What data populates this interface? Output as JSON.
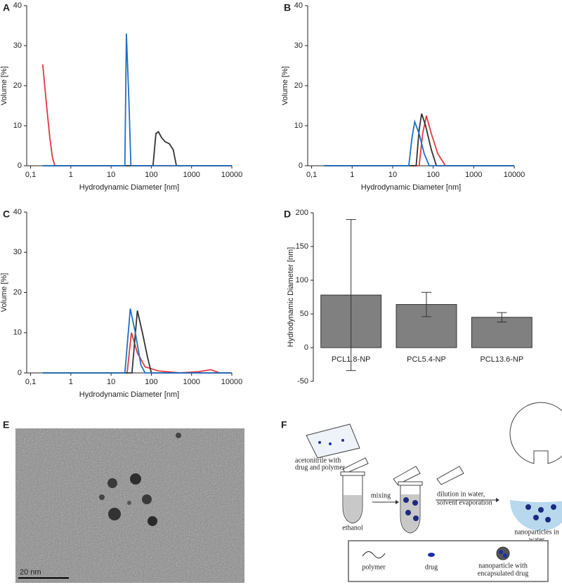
{
  "chart_data": [
    {
      "type": "line",
      "panel_label": "A",
      "xlabel": "Hydrodynamic Diameter [nm]",
      "ylabel": "Volume [%]",
      "xscale": "log",
      "xlim": [
        0.08,
        10000
      ],
      "ylim": [
        0,
        40
      ],
      "xticks": [
        {
          "value": 0.1,
          "label": "0,1"
        },
        1,
        10,
        100,
        1000,
        10000
      ],
      "yticks": [
        0,
        10,
        20,
        30,
        40
      ],
      "series": [
        {
          "color": "#e0393e",
          "x": [
            0.2,
            0.25,
            0.3,
            0.35,
            0.4,
            10000
          ],
          "values": [
            25.3,
            15,
            7,
            2,
            0,
            0
          ]
        },
        {
          "color": "#333333",
          "x": [
            0.2,
            110,
            130,
            150,
            180,
            220,
            280,
            350,
            420,
            10000
          ],
          "values": [
            0,
            0,
            8,
            8.5,
            7,
            6,
            5.5,
            4,
            0,
            0
          ]
        },
        {
          "color": "#1f6fc5",
          "x": [
            0.2,
            22,
            24,
            28,
            31,
            10000
          ],
          "values": [
            0,
            0,
            33,
            15,
            0,
            0
          ]
        }
      ]
    },
    {
      "type": "line",
      "panel_label": "B",
      "xlabel": "Hydrodynamic Diameter [nm]",
      "ylabel": "Volume [%]",
      "xscale": "log",
      "xlim": [
        0.08,
        10000
      ],
      "ylim": [
        0,
        40
      ],
      "xticks": [
        {
          "value": 0.1,
          "label": "0,1"
        },
        1,
        10,
        100,
        1000,
        10000
      ],
      "yticks": [
        0,
        10,
        20,
        30,
        40
      ],
      "series": [
        {
          "color": "#e0393e",
          "x": [
            0.2,
            45,
            55,
            68,
            90,
            130,
            200,
            10000
          ],
          "values": [
            0,
            0,
            8,
            12.5,
            8,
            3,
            0,
            0
          ]
        },
        {
          "color": "#333333",
          "x": [
            0.2,
            38,
            45,
            52,
            65,
            90,
            120,
            10000
          ],
          "values": [
            0,
            0,
            9,
            13,
            10,
            4,
            0,
            0
          ]
        },
        {
          "color": "#1f6fc5",
          "x": [
            0.2,
            25,
            30,
            35,
            45,
            60,
            80,
            10000
          ],
          "values": [
            0,
            0,
            7,
            11,
            8,
            3,
            0,
            0
          ]
        }
      ]
    },
    {
      "type": "line",
      "panel_label": "C",
      "xlabel": "Hydrodynamic Diameter [nm]",
      "ylabel": "Volume [%]",
      "xscale": "log",
      "xlim": [
        0.08,
        10000
      ],
      "ylim": [
        0,
        40
      ],
      "xticks": [
        {
          "value": 0.1,
          "label": "0,1"
        },
        1,
        10,
        100,
        1000,
        10000
      ],
      "yticks": [
        0,
        10,
        20,
        30,
        40
      ],
      "series": [
        {
          "color": "#e0393e",
          "x": [
            0.2,
            25,
            32,
            45,
            70,
            150,
            500,
            1500,
            3000,
            5000,
            10000
          ],
          "values": [
            0,
            0,
            10,
            5,
            1.5,
            0.5,
            0,
            0.3,
            0.8,
            0,
            0
          ]
        },
        {
          "color": "#333333",
          "x": [
            0.2,
            33,
            45,
            60,
            80,
            100,
            10000
          ],
          "values": [
            0,
            0,
            15.5,
            10,
            4,
            0,
            0
          ]
        },
        {
          "color": "#1f6fc5",
          "x": [
            0.2,
            22,
            30,
            40,
            55,
            70,
            10000
          ],
          "values": [
            0,
            0,
            16,
            10,
            2,
            0,
            0
          ]
        }
      ]
    },
    {
      "type": "bar",
      "panel_label": "D",
      "ylabel": "Hydrodynamic Diameter [nm]",
      "categories": [
        "PCL1.8-NP",
        "PCL5.4-NP",
        "PCL13.6-NP"
      ],
      "values": [
        78,
        64,
        45
      ],
      "errors": [
        112,
        18,
        7
      ],
      "color": "#808080",
      "ylim": [
        -50,
        200
      ],
      "yticks": [
        -50,
        0,
        50,
        100,
        150,
        200
      ]
    }
  ],
  "image_panel": {
    "panel_label": "E",
    "scale_bar": "20 nm"
  },
  "diagram": {
    "panel_label": "F",
    "acetonitrile_label": [
      "acetonitrile with",
      "drug and polymer"
    ],
    "ethanol_label": "ethanol",
    "mixing_label": "mixing",
    "dilution_label": [
      "dilution in water,",
      "solvent evaporation"
    ],
    "result_label": [
      "nanoparticles in",
      "water"
    ],
    "legend": {
      "polymer": "polymer",
      "drug": "drug",
      "nanoparticle": [
        "nanoparticle with",
        "encapsulated drug"
      ]
    }
  }
}
